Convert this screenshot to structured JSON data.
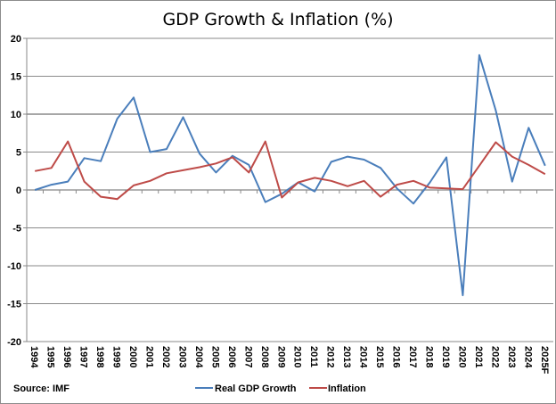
{
  "chart_data": {
    "type": "line",
    "title": "GDP Growth & Inflation (%)",
    "source": "Source: IMF",
    "xlabel": "",
    "ylabel": "",
    "ylim": [
      -20,
      20
    ],
    "yticks": [
      -20,
      -15,
      -10,
      -5,
      0,
      5,
      10,
      15,
      20
    ],
    "grid": true,
    "legend": "bottom",
    "categories": [
      "1994",
      "1995",
      "1996",
      "1997",
      "1998",
      "1999",
      "2000",
      "2001",
      "2002",
      "2003",
      "2004",
      "2005",
      "2006",
      "2007",
      "2008",
      "2009",
      "2010",
      "2011",
      "2012",
      "2013",
      "2014",
      "2015",
      "2016",
      "2017",
      "2018",
      "2019",
      "2020",
      "2021",
      "2022",
      "2023",
      "2024",
      "2025F"
    ],
    "series": [
      {
        "name": "Real GDP Growth",
        "color": "#4a7ebb",
        "values": [
          0.0,
          0.7,
          1.1,
          4.2,
          3.8,
          9.4,
          12.2,
          5.0,
          5.4,
          9.6,
          4.8,
          2.3,
          4.5,
          3.3,
          -1.6,
          -0.5,
          1.0,
          -0.2,
          3.7,
          4.4,
          4.0,
          2.9,
          0.2,
          -1.8,
          1.0,
          4.3,
          -13.9,
          17.8,
          10.5,
          1.1,
          8.2,
          3.2
        ]
      },
      {
        "name": "Inflation",
        "color": "#be4b48",
        "values": [
          2.5,
          2.9,
          6.4,
          1.1,
          -0.9,
          -1.2,
          0.6,
          1.2,
          2.2,
          2.6,
          3.0,
          3.5,
          4.3,
          2.3,
          6.4,
          -1.0,
          1.0,
          1.6,
          1.2,
          0.5,
          1.2,
          -0.9,
          0.7,
          1.2,
          0.3,
          0.2,
          0.1,
          3.2,
          6.3,
          4.4,
          3.3,
          2.1
        ]
      }
    ]
  }
}
